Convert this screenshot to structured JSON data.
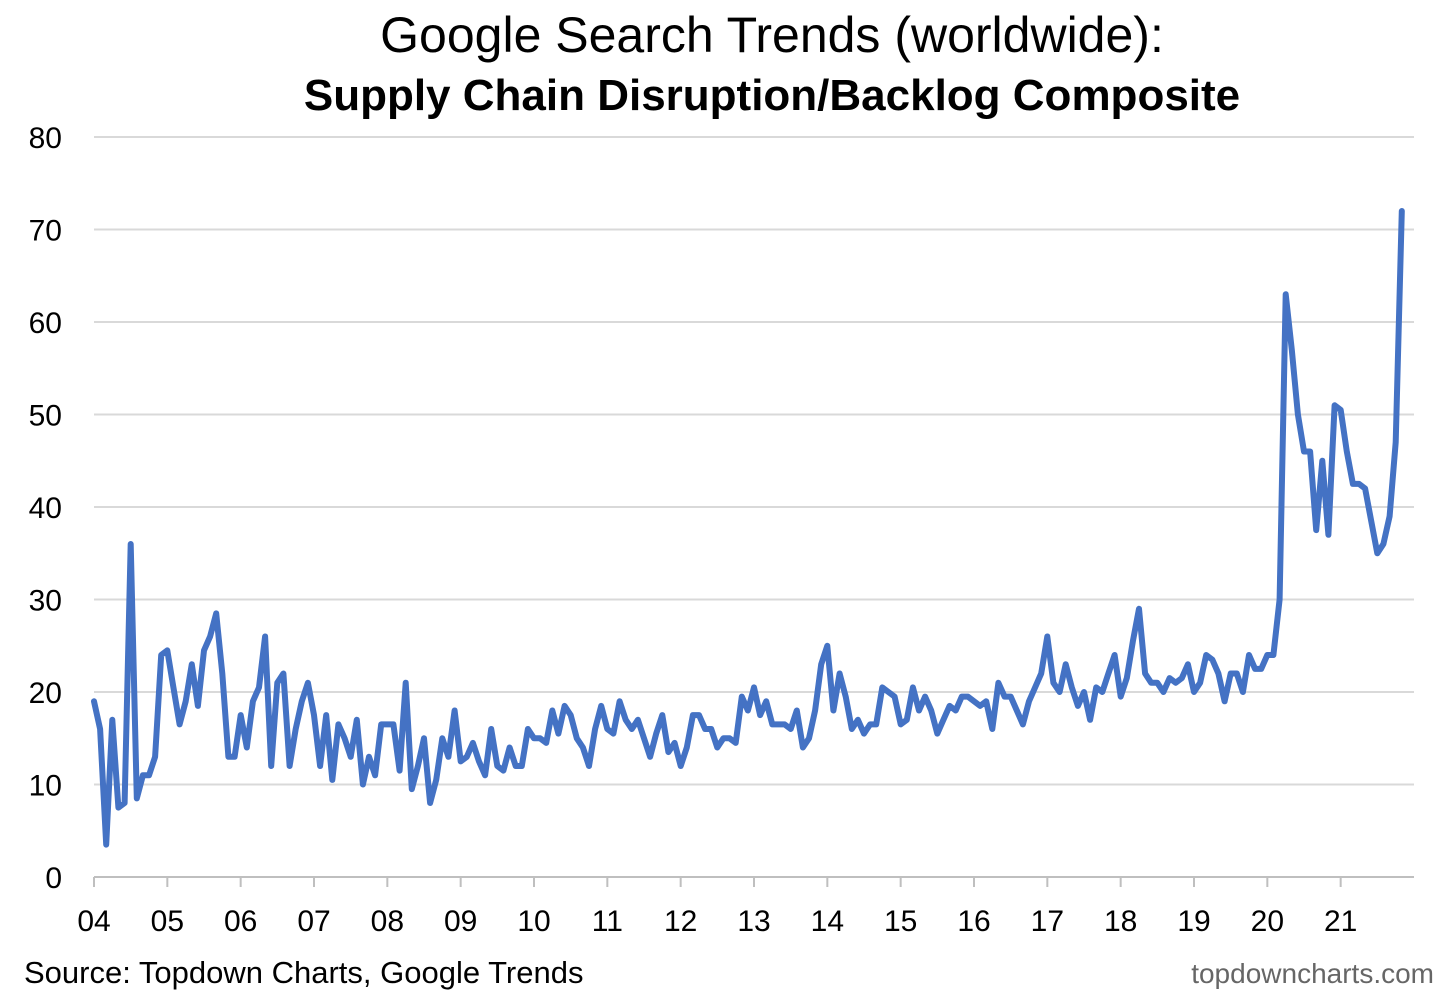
{
  "chart_data": {
    "type": "line",
    "title": "Google Search Trends (worldwide):",
    "subtitle": "Supply Chain Disruption/Backlog Composite",
    "xlabel": "",
    "ylabel": "",
    "ylim": [
      0,
      80
    ],
    "yticks": [
      0,
      10,
      20,
      30,
      40,
      50,
      60,
      70,
      80
    ],
    "xlim": [
      2004,
      2022
    ],
    "xticks": [
      {
        "value": 2004,
        "label": "04"
      },
      {
        "value": 2005,
        "label": "05"
      },
      {
        "value": 2006,
        "label": "06"
      },
      {
        "value": 2007,
        "label": "07"
      },
      {
        "value": 2008,
        "label": "08"
      },
      {
        "value": 2009,
        "label": "09"
      },
      {
        "value": 2010,
        "label": "10"
      },
      {
        "value": 2011,
        "label": "11"
      },
      {
        "value": 2012,
        "label": "12"
      },
      {
        "value": 2013,
        "label": "13"
      },
      {
        "value": 2014,
        "label": "14"
      },
      {
        "value": 2015,
        "label": "15"
      },
      {
        "value": 2016,
        "label": "16"
      },
      {
        "value": 2017,
        "label": "17"
      },
      {
        "value": 2018,
        "label": "18"
      },
      {
        "value": 2019,
        "label": "19"
      },
      {
        "value": 2020,
        "label": "20"
      },
      {
        "value": 2021,
        "label": "21"
      }
    ],
    "grid": true,
    "series": [
      {
        "name": "Supply Chain Disruption/Backlog Composite",
        "color": "#4472C4",
        "x_start": 2004,
        "step": 0.0833333,
        "values": [
          19,
          16,
          3.5,
          17,
          7.5,
          8,
          36,
          8.5,
          11,
          11,
          13,
          24,
          24.5,
          20.5,
          16.5,
          19,
          23,
          18.5,
          24.5,
          26,
          28.5,
          22,
          13,
          13,
          17.5,
          14,
          19,
          20.5,
          26,
          12,
          21,
          22,
          12,
          16,
          19,
          21,
          17.5,
          12,
          17.5,
          10.5,
          16.5,
          15,
          13,
          17,
          10,
          13,
          11,
          16.5,
          16.5,
          16.5,
          11.5,
          21,
          9.5,
          12,
          15,
          8,
          10.5,
          15,
          13,
          18,
          12.5,
          13,
          14.5,
          12.5,
          11,
          16,
          12,
          11.5,
          14,
          12,
          12,
          16,
          15,
          15,
          14.5,
          18,
          15.5,
          18.5,
          17.5,
          15,
          14,
          12,
          16,
          18.5,
          16,
          15.5,
          19,
          17,
          16,
          17,
          15,
          13,
          15.5,
          17.5,
          13.5,
          14.5,
          12,
          14,
          17.5,
          17.5,
          16,
          16,
          14,
          15,
          15,
          14.5,
          19.5,
          18,
          20.5,
          17.5,
          19,
          16.5,
          16.5,
          16.5,
          16,
          18,
          14,
          15,
          18,
          23,
          25,
          18,
          22,
          19.5,
          16,
          17,
          15.5,
          16.5,
          16.5,
          20.5,
          20,
          19.5,
          16.5,
          17,
          20.5,
          18,
          19.5,
          18,
          15.5,
          17,
          18.5,
          18,
          19.5,
          19.5,
          19,
          18.5,
          19,
          16,
          21,
          19.5,
          19.5,
          18,
          16.5,
          19,
          20.5,
          22,
          26,
          21,
          20,
          23,
          20.5,
          18.5,
          20,
          17,
          20.5,
          20,
          22,
          24,
          19.5,
          21.5,
          25.5,
          29,
          22,
          21,
          21,
          20,
          21.5,
          21,
          21.5,
          23,
          20,
          21,
          24,
          23.5,
          22,
          19,
          22,
          22,
          20,
          24,
          22.5,
          22.5,
          24,
          24,
          30,
          63,
          57,
          50,
          46,
          46,
          37.5,
          45,
          37,
          51,
          50.5,
          46,
          42.5,
          42.5,
          42,
          38.5,
          35,
          36,
          39,
          47,
          72
        ]
      }
    ]
  },
  "footer": {
    "source": "Source: Topdown Charts, Google Trends",
    "watermark": "topdowncharts.com"
  },
  "colors": {
    "line": "#4472C4",
    "grid": "#D9D9D9",
    "axis": "#BFBFBF",
    "text": "#000000",
    "watermark": "#666666"
  }
}
